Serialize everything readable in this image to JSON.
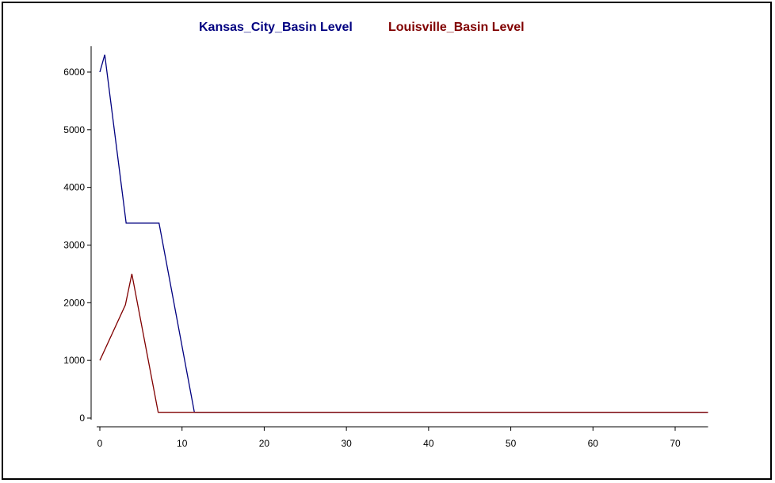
{
  "chart_data": {
    "type": "line",
    "title": "",
    "xlabel": "",
    "ylabel": "",
    "xlim": [
      0,
      74
    ],
    "ylim": [
      0,
      6300
    ],
    "x_ticks": [
      0,
      10,
      20,
      30,
      40,
      50,
      60,
      70
    ],
    "y_ticks": [
      0,
      1000,
      2000,
      3000,
      4000,
      5000,
      6000
    ],
    "legend_position": "top-center",
    "grid": false,
    "series": [
      {
        "name": "Kansas_City_Basin Level",
        "color": "#000080",
        "points": [
          [
            0,
            6000
          ],
          [
            0.6,
            6300
          ],
          [
            3.2,
            3380
          ],
          [
            7.2,
            3380
          ],
          [
            11.5,
            100
          ],
          [
            74,
            100
          ]
        ]
      },
      {
        "name": "Louisville_Basin Level",
        "color": "#800000",
        "points": [
          [
            0,
            1000
          ],
          [
            3.1,
            1960
          ],
          [
            3.9,
            2500
          ],
          [
            7.1,
            100
          ],
          [
            74,
            100
          ]
        ]
      }
    ]
  }
}
